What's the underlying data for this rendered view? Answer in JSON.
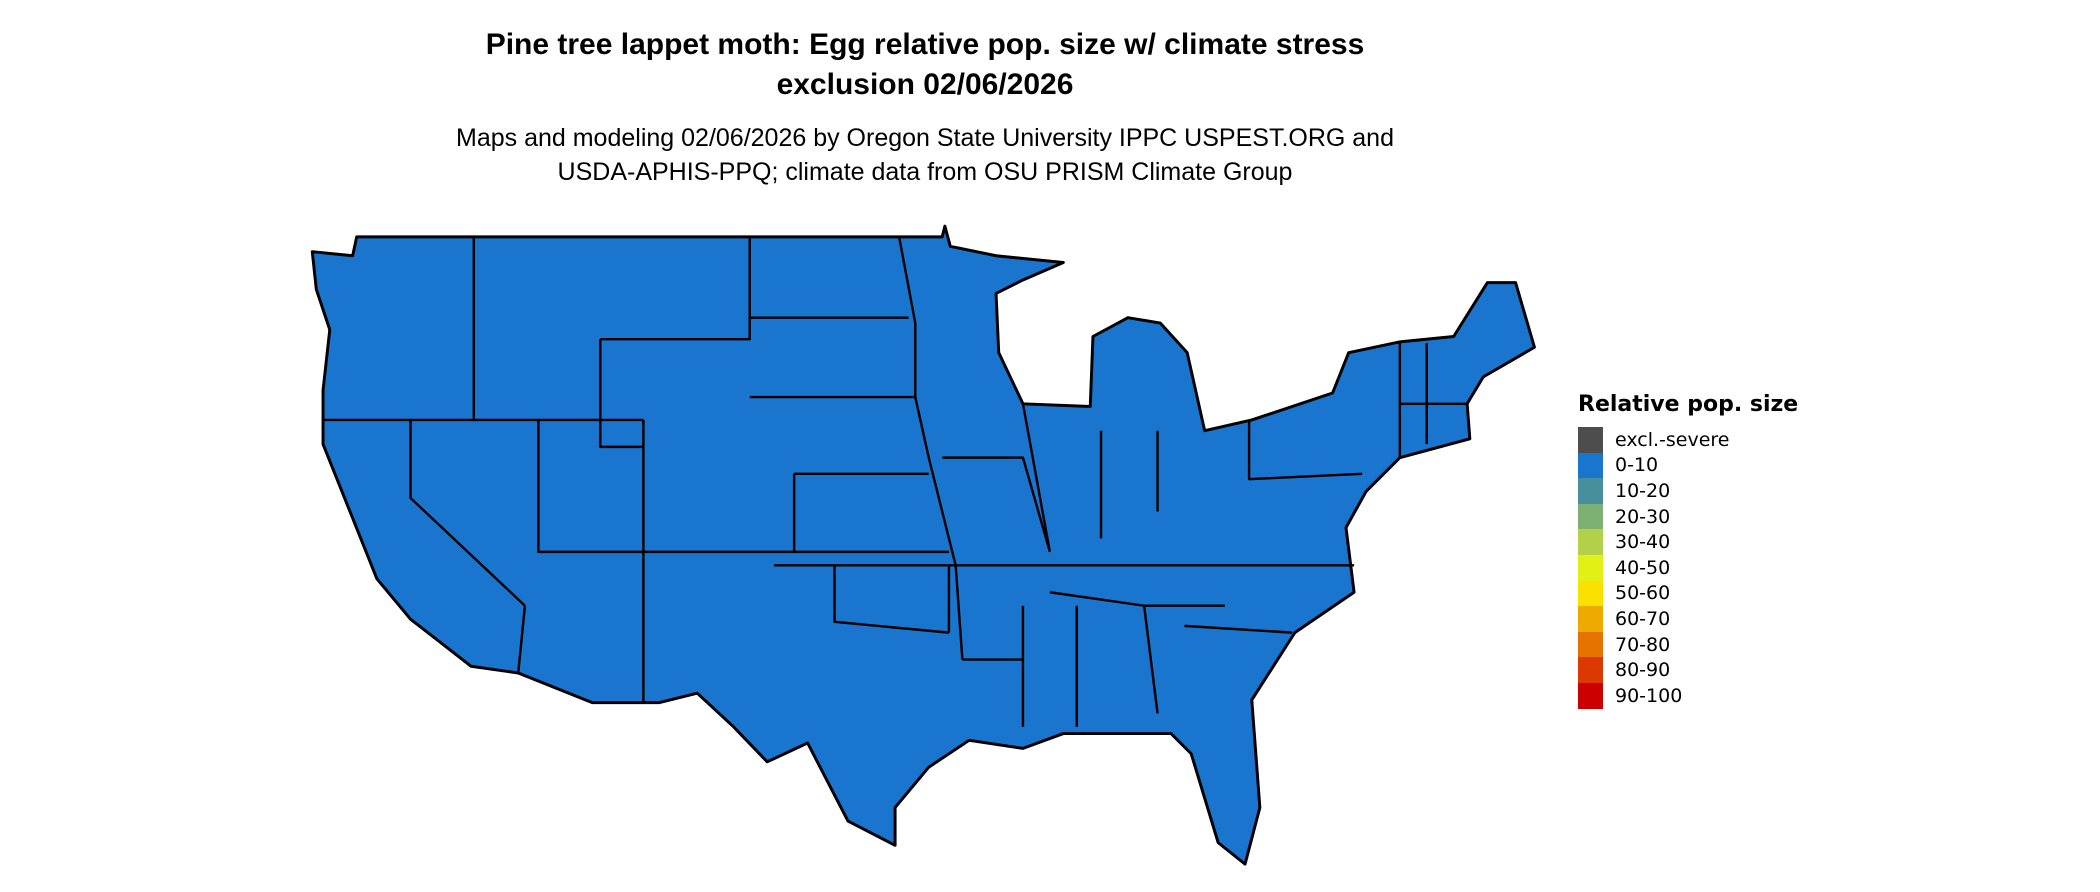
{
  "title_line1": "Pine tree lappet moth: Egg relative pop. size w/ climate stress",
  "title_line2": "exclusion 02/06/2026",
  "subtitle_line1": "Maps and modeling 02/06/2026 by Oregon State University IPPC USPEST.ORG and",
  "subtitle_line2": "USDA-APHIS-PPQ; climate data from OSU PRISM Climate Group",
  "map_fill": "#1a75cf",
  "legend": {
    "title": "Relative pop. size",
    "items": [
      {
        "label": "excl.-severe",
        "color": "#4d4d4d"
      },
      {
        "label": "0-10",
        "color": "#1a75cf"
      },
      {
        "label": "10-20",
        "color": "#468f9b"
      },
      {
        "label": "20-30",
        "color": "#7fb073"
      },
      {
        "label": "30-40",
        "color": "#b2d048"
      },
      {
        "label": "40-50",
        "color": "#e3f016"
      },
      {
        "label": "50-60",
        "color": "#f9e200"
      },
      {
        "label": "60-70",
        "color": "#efaa00"
      },
      {
        "label": "70-80",
        "color": "#e67300"
      },
      {
        "label": "80-90",
        "color": "#db3900"
      },
      {
        "label": "90-100",
        "color": "#cc0000"
      }
    ]
  }
}
